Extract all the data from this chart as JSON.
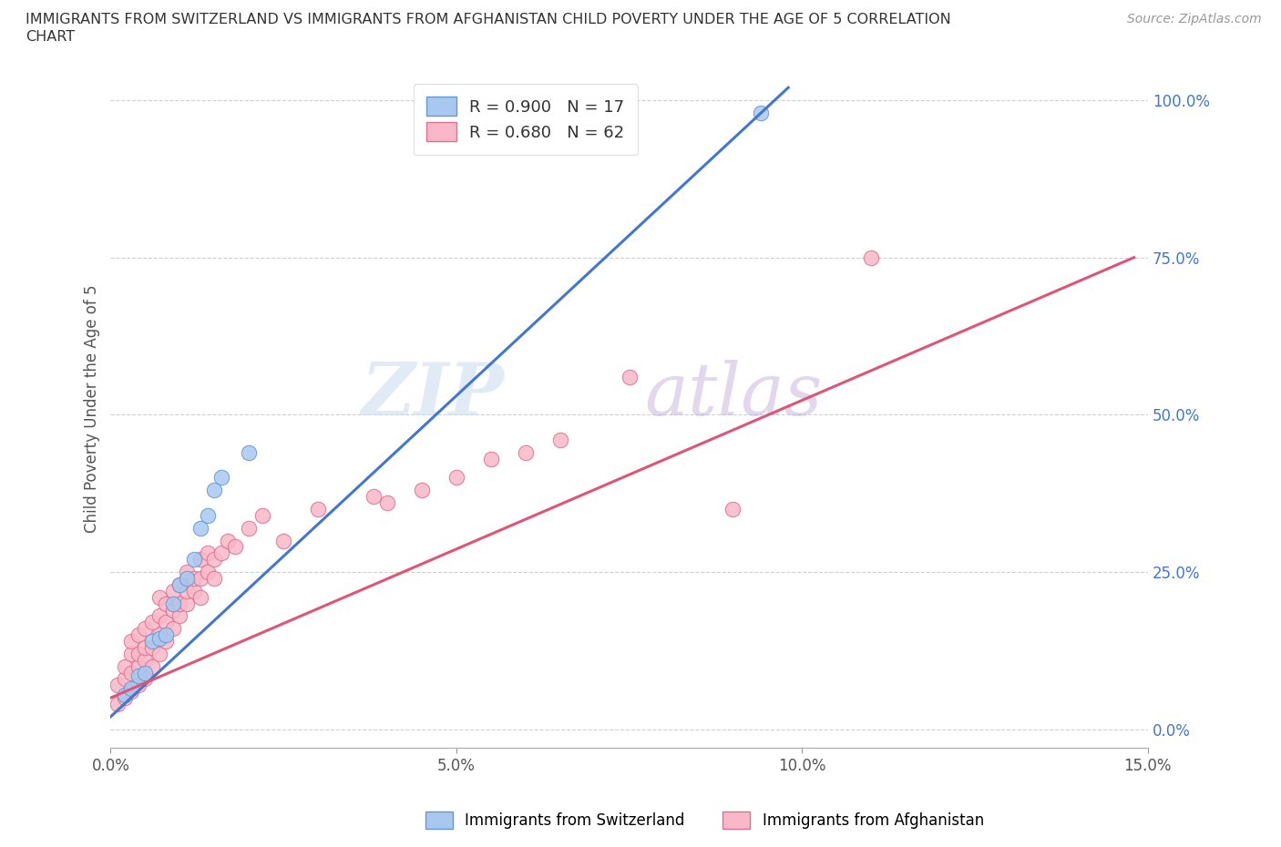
{
  "title_line1": "IMMIGRANTS FROM SWITZERLAND VS IMMIGRANTS FROM AFGHANISTAN CHILD POVERTY UNDER THE AGE OF 5 CORRELATION",
  "title_line2": "CHART",
  "source": "Source: ZipAtlas.com",
  "ylabel": "Child Poverty Under the Age of 5",
  "xmin": 0.0,
  "xmax": 0.15,
  "ymin": 0.0,
  "ymax": 1.05,
  "ytick_vals": [
    0.0,
    0.25,
    0.5,
    0.75,
    1.0
  ],
  "ytick_labels": [
    "0.0%",
    "25.0%",
    "50.0%",
    "75.0%",
    "100.0%"
  ],
  "xtick_vals": [
    0.0,
    0.05,
    0.1,
    0.15
  ],
  "xtick_labels": [
    "0.0%",
    "5.0%",
    "10.0%",
    "15.0%"
  ],
  "series1_fill": "#A8C8F0",
  "series1_edge": "#6699CC",
  "series2_fill": "#F8B8C8",
  "series2_edge": "#E07090",
  "line1_color": "#4477CC",
  "line2_color": "#DD5577",
  "r1": 0.9,
  "n1": 17,
  "r2": 0.68,
  "n2": 62,
  "legend_label1": "Immigrants from Switzerland",
  "legend_label2": "Immigrants from Afghanistan",
  "background_color": "#FFFFFF",
  "grid_color": "#BBBBBB",
  "watermark_zip_color": "#C8DCF0",
  "watermark_atlas_color": "#C0A8D8",
  "legend_r_color": "#4477CC",
  "legend_n_color": "#4477CC",
  "title_color": "#333333",
  "ylabel_color": "#555555",
  "tick_color": "#555555",
  "right_tick_color": "#4477CC",
  "swiss_scatter_x": [
    0.002,
    0.003,
    0.004,
    0.005,
    0.006,
    0.007,
    0.008,
    0.009,
    0.01,
    0.011,
    0.012,
    0.013,
    0.014,
    0.015,
    0.016,
    0.02,
    0.094
  ],
  "swiss_scatter_y": [
    0.055,
    0.065,
    0.085,
    0.09,
    0.14,
    0.145,
    0.15,
    0.2,
    0.23,
    0.24,
    0.27,
    0.32,
    0.34,
    0.38,
    0.4,
    0.44,
    0.98
  ],
  "afghan_scatter_x": [
    0.001,
    0.001,
    0.002,
    0.002,
    0.002,
    0.003,
    0.003,
    0.003,
    0.003,
    0.004,
    0.004,
    0.004,
    0.004,
    0.005,
    0.005,
    0.005,
    0.005,
    0.006,
    0.006,
    0.006,
    0.007,
    0.007,
    0.007,
    0.007,
    0.008,
    0.008,
    0.008,
    0.009,
    0.009,
    0.009,
    0.01,
    0.01,
    0.01,
    0.011,
    0.011,
    0.011,
    0.012,
    0.012,
    0.013,
    0.013,
    0.013,
    0.014,
    0.014,
    0.015,
    0.015,
    0.016,
    0.017,
    0.018,
    0.02,
    0.022,
    0.025,
    0.03,
    0.038,
    0.04,
    0.045,
    0.05,
    0.055,
    0.06,
    0.065,
    0.075,
    0.09,
    0.11
  ],
  "afghan_scatter_y": [
    0.04,
    0.07,
    0.05,
    0.08,
    0.1,
    0.06,
    0.09,
    0.12,
    0.14,
    0.07,
    0.1,
    0.12,
    0.15,
    0.08,
    0.11,
    0.13,
    0.16,
    0.1,
    0.13,
    0.17,
    0.12,
    0.15,
    0.18,
    0.21,
    0.14,
    0.17,
    0.2,
    0.16,
    0.19,
    0.22,
    0.18,
    0.2,
    0.23,
    0.2,
    0.22,
    0.25,
    0.22,
    0.24,
    0.21,
    0.24,
    0.27,
    0.25,
    0.28,
    0.24,
    0.27,
    0.28,
    0.3,
    0.29,
    0.32,
    0.34,
    0.3,
    0.35,
    0.37,
    0.36,
    0.38,
    0.4,
    0.43,
    0.44,
    0.46,
    0.56,
    0.35,
    0.75
  ],
  "line1_x0": 0.0,
  "line1_y0": 0.02,
  "line1_x1": 0.098,
  "line1_y1": 1.02,
  "line2_x0": 0.0,
  "line2_y0": 0.05,
  "line2_x1": 0.148,
  "line2_y1": 0.75
}
